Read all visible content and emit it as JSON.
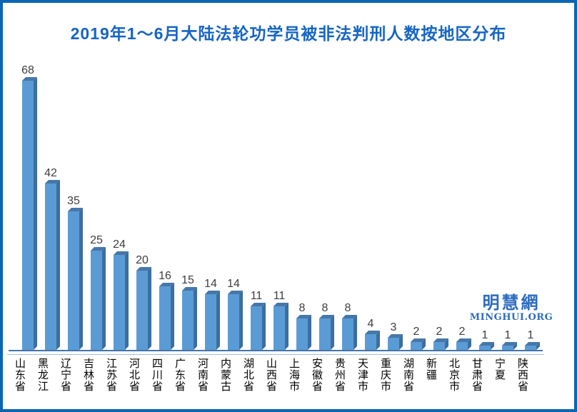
{
  "chart_data": {
    "type": "bar",
    "title": "2019年1～6月大陆法轮功学员被非法判刑人数按地区分布",
    "categories": [
      "山东省",
      "黑龙江",
      "辽宁省",
      "吉林省",
      "江苏省",
      "河北省",
      "四川省",
      "广东省",
      "河南省",
      "内蒙古",
      "湖北省",
      "山西省",
      "上海市",
      "安徽省",
      "贵州省",
      "天津市",
      "重庆市",
      "湖南省",
      "新疆",
      "北京市",
      "甘肃省",
      "宁夏",
      "陕西省"
    ],
    "values": [
      68,
      42,
      35,
      25,
      24,
      20,
      16,
      15,
      14,
      14,
      11,
      11,
      8,
      8,
      8,
      4,
      3,
      2,
      2,
      2,
      1,
      1,
      1
    ],
    "xlabel": "",
    "ylabel": "",
    "ylim": [
      0,
      70
    ],
    "grid": false,
    "legend_position": "none",
    "bar_style": "3d-column",
    "data_labels": true,
    "colors": {
      "bar_front": "#5B9BD5",
      "bar_side": "#3C6E9F",
      "bar_top": "#4677A8",
      "title": "#1565C4",
      "value_label": "#3D3D3D",
      "category_label": "#000000",
      "axis_line": "#4374AC",
      "axis_subline": "#9CC2E5",
      "frame_border": "#0A66B2",
      "watermark": "#2D6CBE",
      "background": "#FFFFFF"
    }
  },
  "watermark": {
    "cn": "明慧網",
    "en": "MINGHUI.ORG"
  }
}
